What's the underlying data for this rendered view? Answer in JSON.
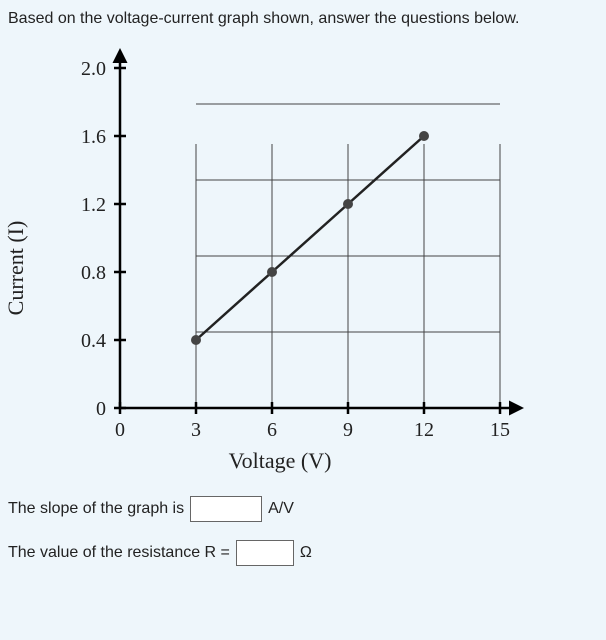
{
  "prompt": "Based on the voltage-current graph shown, answer the questions below.",
  "chart": {
    "type": "line",
    "x_label": "Voltage (V)",
    "y_label": "Current (I)",
    "x_ticks": [
      0,
      3,
      6,
      9,
      12,
      15
    ],
    "y_ticks": [
      0,
      0.4,
      0.8,
      1.2,
      1.6,
      2.0
    ],
    "xlim": [
      0,
      15
    ],
    "ylim": [
      0,
      2.0
    ],
    "points": [
      {
        "x": 3,
        "y": 0.4
      },
      {
        "x": 6,
        "y": 0.8
      },
      {
        "x": 9,
        "y": 1.2
      },
      {
        "x": 12,
        "y": 1.6
      }
    ],
    "line_color": "#222222",
    "line_width": 2.5,
    "marker_radius": 5,
    "marker_fill": "#444444",
    "grid_color": "#444444",
    "grid_width": 1,
    "axis_color": "#000000",
    "axis_width": 2.5,
    "background_color": "#eef6fb",
    "tick_fontsize": 20,
    "label_fontsize": 22,
    "label_fontfamily": "serif"
  },
  "q1": {
    "before": "The slope of the graph is",
    "value": "",
    "unit": "A/V"
  },
  "q2": {
    "before": "The value of the resistance R =",
    "value": "",
    "unit": "Ω"
  }
}
